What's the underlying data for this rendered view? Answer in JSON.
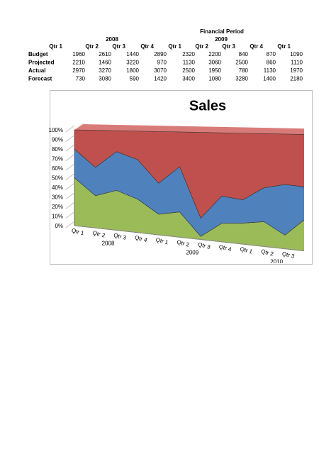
{
  "table": {
    "title": "Financial Period",
    "years": [
      "2008",
      "2009"
    ],
    "columns": [
      "Qtr 1",
      "Qtr 2",
      "Qtr 3",
      "Qtr 4",
      "Qtr 1",
      "Qtr 2",
      "Qtr 3",
      "Qtr 4",
      "Qtr 1"
    ],
    "rows": [
      {
        "label": "Budget",
        "values": [
          1960,
          2610,
          1440,
          2890,
          2320,
          2200,
          840,
          870,
          1090
        ]
      },
      {
        "label": "Projected",
        "values": [
          2210,
          1460,
          3220,
          970,
          1130,
          3060,
          2500,
          860,
          1110
        ]
      },
      {
        "label": "Actual",
        "values": [
          2970,
          3270,
          1800,
          3070,
          2500,
          1950,
          780,
          1130,
          1970
        ]
      },
      {
        "label": "Forecast",
        "values": [
          730,
          3080,
          590,
          1420,
          3400,
          1080,
          3280,
          1400,
          2180
        ]
      }
    ]
  },
  "chart_data": {
    "type": "area",
    "stacked": "percent",
    "title": "Sales",
    "categories": [
      "Qtr 1",
      "Qtr 2",
      "Qtr 3",
      "Qtr 4",
      "Qtr 1",
      "Qtr 2",
      "Qtr 3",
      "Qtr 4",
      "Qtr 1",
      "Qtr 2",
      "Qtr 3",
      null
    ],
    "groups": [
      "2008",
      "2009",
      "2010"
    ],
    "series": [
      {
        "color": "#9bbb59",
        "values": [
          50,
          33,
          40,
          33,
          20,
          24,
          3,
          17,
          19,
          22,
          12,
          28
        ]
      },
      {
        "color": "#4f81bd",
        "values": [
          30,
          29,
          39,
          39,
          30,
          43,
          17,
          25,
          21,
          30,
          44,
          27
        ]
      },
      {
        "color": "#c0504d",
        "values": [
          20,
          38,
          21,
          28,
          50,
          33,
          80,
          58,
          60,
          48,
          44,
          45
        ]
      }
    ],
    "ylim": [
      0,
      100
    ],
    "yticks": [
      {
        "value": 0,
        "label": "0%"
      },
      {
        "value": 10,
        "label": "10%"
      },
      {
        "value": 20,
        "label": "20%"
      },
      {
        "value": 30,
        "label": "30%"
      },
      {
        "value": 40,
        "label": "40%"
      },
      {
        "value": 50,
        "label": "50%"
      },
      {
        "value": 60,
        "label": "60%"
      },
      {
        "value": 70,
        "label": "70%"
      },
      {
        "value": 80,
        "label": "80%"
      },
      {
        "value": 90,
        "label": "90%"
      },
      {
        "value": 100,
        "label": "100%"
      }
    ],
    "grid": true
  }
}
